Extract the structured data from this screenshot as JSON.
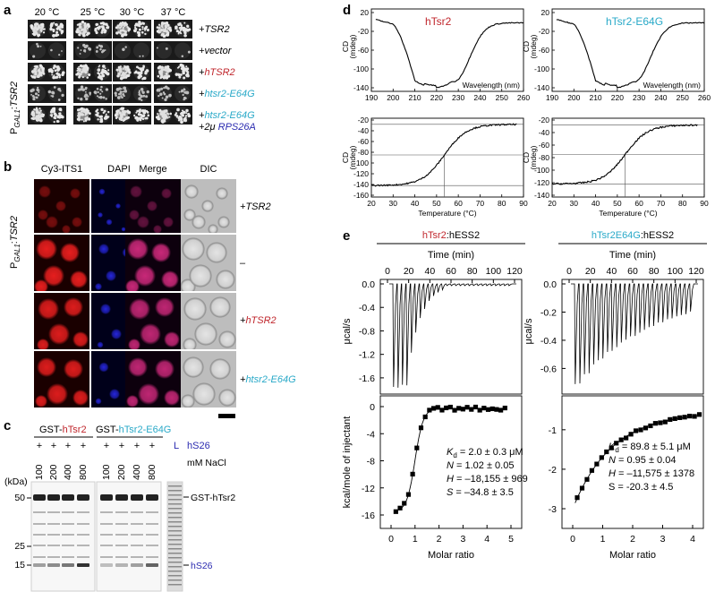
{
  "colors": {
    "red": "#c0272d",
    "cyan": "#29a9c8",
    "blue": "#2b2bb0"
  },
  "panel_labels": {
    "a": "a",
    "b": "b",
    "c": "c",
    "d": "d",
    "e": "e"
  },
  "panel_a": {
    "temps": [
      "20 °C",
      "25 °C",
      "30 °C",
      "37 °C"
    ],
    "ylabel": {
      "p": "P",
      "gal": "GAL1",
      "sep": ":",
      "gene": "TSR2"
    },
    "rows": [
      {
        "prefix": "+",
        "name": "TSR2",
        "color": "black",
        "extra": ""
      },
      {
        "prefix": "+",
        "name": "vector",
        "color": "black",
        "extra": ""
      },
      {
        "prefix": "+",
        "name": "hTSR2",
        "color": "red",
        "extra": ""
      },
      {
        "prefix": "+",
        "name": "htsr2-E64G",
        "color": "cyan",
        "extra": ""
      },
      {
        "prefix": "+",
        "name": "htsr2-E64G",
        "color": "cyan",
        "extra": "+2μ RPS26A"
      }
    ]
  },
  "panel_b": {
    "columns": [
      "Cy3-ITS1",
      "DAPI",
      "Merge",
      "DIC"
    ],
    "ylabel": {
      "p": "P",
      "gal": "GAL1",
      "sep": ":",
      "gene": "TSR2"
    },
    "rows": [
      {
        "prefix": "+",
        "name": "TSR2",
        "color": "black"
      },
      {
        "prefix": "",
        "name": "–",
        "color": "black"
      },
      {
        "prefix": "+",
        "name": "hTSR2",
        "color": "red"
      },
      {
        "prefix": "+",
        "name": "htsr2-E64G",
        "color": "cyan"
      }
    ]
  },
  "panel_c": {
    "group1": {
      "prefix": "GST-",
      "name": "hTsr2"
    },
    "group2": {
      "prefix": "GST-",
      "name": "hTsr2-E64G"
    },
    "plus": [
      "+",
      "+",
      "+",
      "+",
      "+",
      "+",
      "+",
      "+"
    ],
    "ladder": "L",
    "hs26_row_label": "hS26",
    "salts": [
      "100",
      "200",
      "400",
      "800",
      "100",
      "200",
      "400",
      "800"
    ],
    "salt_unit": "mM NaCl",
    "kda_label": "(kDa)",
    "markers": [
      "50",
      "25",
      "15"
    ],
    "band_labels": {
      "gst": "GST-hTsr2",
      "hs26": "hS26"
    }
  },
  "panel_d": {
    "titles": [
      "hTsr2",
      "hTsr2-E64G"
    ],
    "cd_ylabel": "CD\n(mdeg)",
    "top_xlabel": "Wavelength (nm)",
    "bottom_xlabel": "Temperature (°C)",
    "top_xticks": [
      "190",
      "200",
      "210",
      "220",
      "230",
      "240",
      "250",
      "260"
    ],
    "top_yticks": [
      "20",
      "-20",
      "-60",
      "-100",
      "-140"
    ],
    "bottom_xticks": [
      "20",
      "30",
      "40",
      "50",
      "60",
      "70",
      "80",
      "90"
    ],
    "bottom_yticks_left": [
      "-20",
      "-40",
      "-60",
      "-80",
      "-100",
      "-120",
      "-140",
      "-160"
    ],
    "bottom_yticks_right": [
      "-20",
      "-40",
      "-60",
      "-80",
      "-100",
      "-120",
      "-140"
    ]
  },
  "panel_e": {
    "titles": [
      {
        "name": "hTsr2",
        "suffix": ":hESS2"
      },
      {
        "name": "hTsr2E64G",
        "suffix": ":hESS2"
      }
    ],
    "time_label": "Time (min)",
    "time_ticks": [
      "0",
      "20",
      "40",
      "60",
      "80",
      "100",
      "120"
    ],
    "top_ylabel": "μcal/s",
    "bottom_ylabel": "kcal/mole of injectant",
    "xlabel": "Molar ratio",
    "left": {
      "top_yticks": [
        "0.0",
        "-0.4",
        "-0.8",
        "-1.2",
        "-1.6"
      ],
      "bottom_yticks": [
        "0",
        "-4",
        "-8",
        "-12",
        "-16"
      ],
      "x_ticks": [
        "0",
        "1",
        "2",
        "3",
        "4",
        "5"
      ],
      "params": [
        {
          "sym": "K",
          "sub": "d",
          "val": " = 2.0 ± 0.3 μM"
        },
        {
          "sym": "N",
          "sub": "",
          "val": " = 1.02 ± 0.05"
        },
        {
          "sym": "H",
          "sub": "",
          "val": " = –18,155 ± 969"
        },
        {
          "sym": "S",
          "sub": "",
          "val": " = –34.8 ± 3.5"
        }
      ]
    },
    "right": {
      "top_yticks": [
        "0.0",
        "-0.2",
        "-0.4",
        "-0.6"
      ],
      "bottom_yticks": [
        "-1",
        "-2",
        "-3"
      ],
      "x_ticks": [
        "0",
        "1",
        "2",
        "3",
        "4"
      ],
      "params": [
        {
          "sym": "K",
          "sub": "d",
          "val": " = 89.8 ± 5.1 μM"
        },
        {
          "sym": "N",
          "sub": "",
          "val": " = 0.95 ± 0.04"
        },
        {
          "sym": "H",
          "sub": "",
          "val": " = –11,575 ± 1378"
        },
        {
          "sym": "S",
          "sub": "",
          "val": " = -20.3 ± 4.5"
        }
      ]
    }
  }
}
